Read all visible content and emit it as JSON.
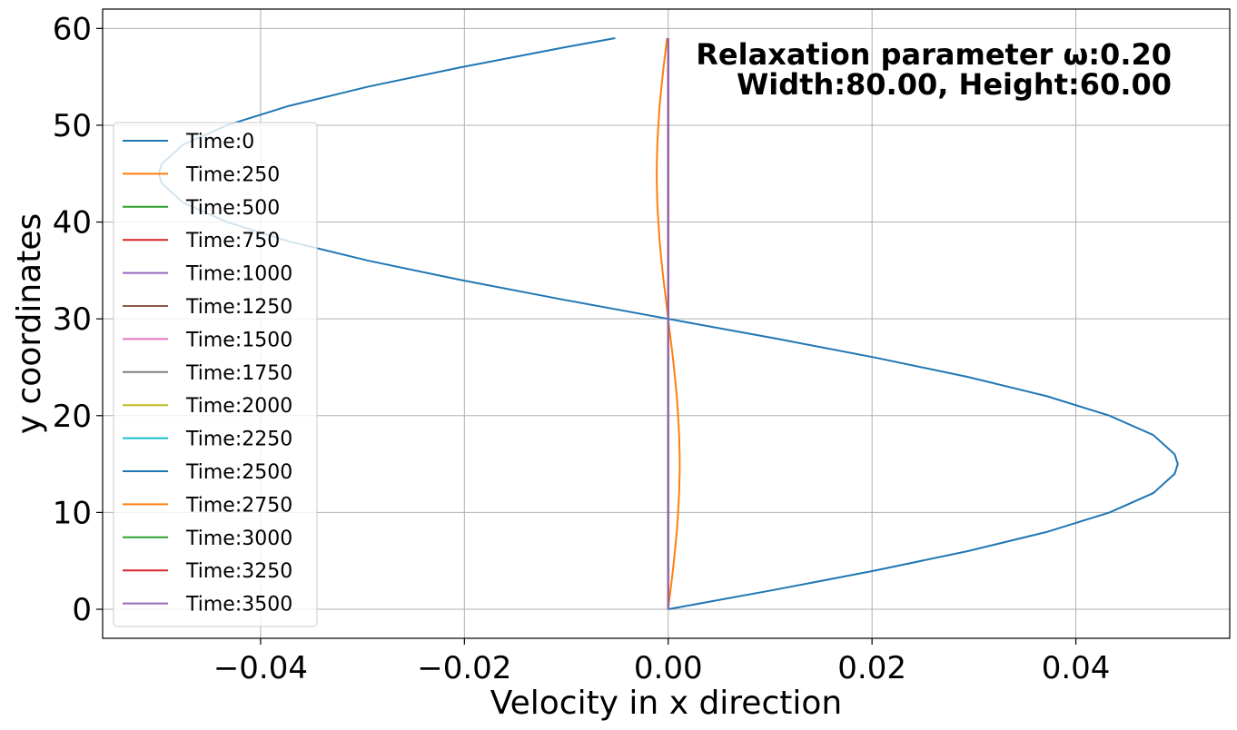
{
  "chart_data": {
    "type": "line",
    "xlabel": "Velocity in x direction",
    "ylabel": "y coordinates",
    "xlim": [
      -0.0555,
      0.0551
    ],
    "ylim": [
      -3,
      62
    ],
    "grid": true,
    "legend_location": "center-left",
    "x_ticks": [
      -0.04,
      -0.02,
      0.0,
      0.02,
      0.04
    ],
    "x_tick_labels": [
      "−0.04",
      "−0.02",
      "0.00",
      "0.02",
      "0.04"
    ],
    "y_ticks": [
      0,
      10,
      20,
      30,
      40,
      50,
      60
    ],
    "y_tick_labels": [
      "0",
      "10",
      "20",
      "30",
      "40",
      "50",
      "60"
    ],
    "annotation_lines": [
      "Relaxation parameter ω:0.20",
      "Width:80.00, Height:60.00"
    ],
    "profile_y": [
      0,
      2,
      4,
      6,
      8,
      10,
      12,
      14,
      15,
      16,
      18,
      20,
      22,
      24,
      26,
      28,
      30,
      32,
      34,
      36,
      38,
      40,
      42,
      44,
      45,
      46,
      48,
      50,
      52,
      54,
      56,
      58,
      59
    ],
    "series": [
      {
        "name": "Time:0",
        "color": "#1f77b4",
        "x": [
          0,
          0.0104,
          0.0203,
          0.0294,
          0.0372,
          0.0433,
          0.0476,
          0.0497,
          0.05,
          0.0497,
          0.0476,
          0.0433,
          0.0372,
          0.0294,
          0.0203,
          0.0104,
          0,
          -0.0104,
          -0.0203,
          -0.0294,
          -0.0372,
          -0.0433,
          -0.0476,
          -0.0497,
          -0.05,
          -0.0497,
          -0.0476,
          -0.0433,
          -0.0372,
          -0.0294,
          -0.0203,
          -0.0104,
          -0.0052
        ]
      },
      {
        "name": "Time:250",
        "color": "#ff7f0e",
        "x": [
          0,
          0.00023,
          0.00046,
          0.00066,
          0.00084,
          0.00097,
          0.00107,
          0.00112,
          0.00113,
          0.00112,
          0.00107,
          0.00097,
          0.00084,
          0.00066,
          0.00046,
          0.00023,
          0,
          -0.00023,
          -0.00046,
          -0.00066,
          -0.00084,
          -0.00097,
          -0.00107,
          -0.00112,
          -0.00113,
          -0.00112,
          -0.00107,
          -0.00097,
          -0.00084,
          -0.00066,
          -0.00046,
          -0.00023,
          -0.00012
        ]
      },
      {
        "name": "Time:500",
        "color": "#2ca02c",
        "x": [
          0,
          0
        ]
      },
      {
        "name": "Time:750",
        "color": "#d62728",
        "x": [
          0,
          0
        ]
      },
      {
        "name": "Time:1000",
        "color": "#9467bd",
        "x": [
          0,
          0
        ]
      },
      {
        "name": "Time:1250",
        "color": "#8c564b",
        "x": [
          0,
          0
        ]
      },
      {
        "name": "Time:1500",
        "color": "#e377c2",
        "x": [
          0,
          0
        ]
      },
      {
        "name": "Time:1750",
        "color": "#7f7f7f",
        "x": [
          0,
          0
        ]
      },
      {
        "name": "Time:2000",
        "color": "#bcbd22",
        "x": [
          0,
          0
        ]
      },
      {
        "name": "Time:2250",
        "color": "#17becf",
        "x": [
          0,
          0
        ]
      },
      {
        "name": "Time:2500",
        "color": "#1f77b4",
        "x": [
          0,
          0
        ]
      },
      {
        "name": "Time:2750",
        "color": "#ff7f0e",
        "x": [
          0,
          0
        ]
      },
      {
        "name": "Time:3000",
        "color": "#2ca02c",
        "x": [
          0,
          0
        ]
      },
      {
        "name": "Time:3250",
        "color": "#d62728",
        "x": [
          0,
          0
        ]
      },
      {
        "name": "Time:3500",
        "color": "#9467bd",
        "x": [
          0,
          0
        ]
      }
    ]
  }
}
